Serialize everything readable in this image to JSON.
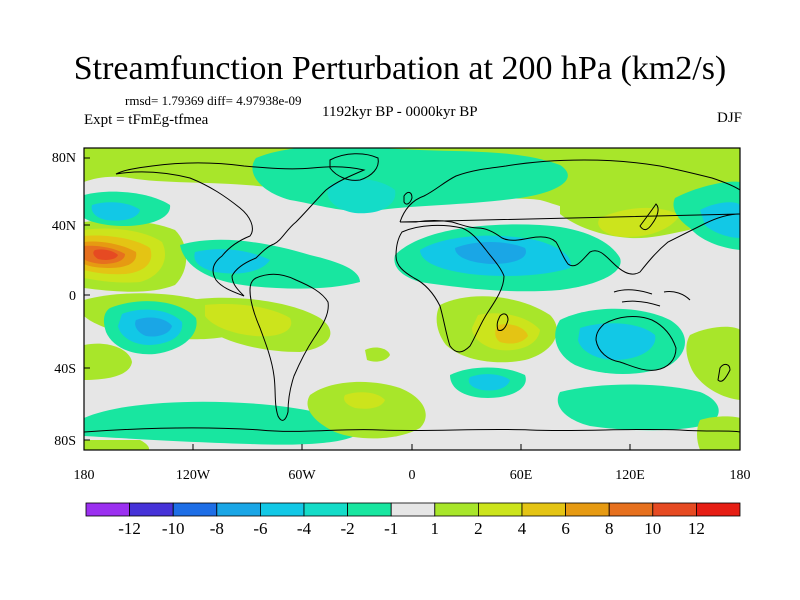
{
  "figure": {
    "title": "Streamfunction Perturbation at 200 hPa (km2/s)",
    "stats_line": "rmsd= 1.79369 diff= 4.97938e-09",
    "experiment": "Expt = tFmEg-tfmea",
    "period": "1192kyr BP - 0000kyr BP",
    "season": "DJF"
  },
  "axes": {
    "lat_ticks": [
      "80N",
      "40N",
      "0",
      "40S",
      "80S"
    ],
    "lon_ticks": [
      "180",
      "120W",
      "60W",
      "0",
      "60E",
      "120E",
      "180"
    ]
  },
  "colorbar": {
    "labels": [
      "-12",
      "-10",
      "-8",
      "-6",
      "-4",
      "-2",
      "-1",
      "1",
      "2",
      "4",
      "6",
      "8",
      "10",
      "12"
    ],
    "colors": [
      "#9b30f0",
      "#4632d8",
      "#1e6ee6",
      "#1aa6e6",
      "#12c8e6",
      "#14dcc8",
      "#18e6a0",
      "#e6e6e6",
      "#a8e62a",
      "#cce41c",
      "#e4c414",
      "#e69a12",
      "#e6701e",
      "#e64a22",
      "#e61e14"
    ]
  },
  "chart_data": {
    "type": "heatmap",
    "title": "Streamfunction Perturbation at 200 hPa (km2/s)",
    "x_axis": {
      "label": "longitude",
      "range": [
        -180,
        180
      ],
      "ticks": [
        -180,
        -120,
        -60,
        0,
        60,
        120,
        180
      ]
    },
    "y_axis": {
      "label": "latitude",
      "range": [
        -90,
        90
      ],
      "ticks": [
        80,
        40,
        0,
        -40,
        -80
      ]
    },
    "contour_levels": [
      -12,
      -10,
      -8,
      -6,
      -4,
      -2,
      -1,
      1,
      2,
      4,
      6,
      8,
      10,
      12
    ],
    "features": [
      {
        "lon": -170,
        "lat": 19,
        "value": 9,
        "kind": "max"
      },
      {
        "lon": 168,
        "lat": 18,
        "value": 7,
        "kind": "max"
      },
      {
        "lon": -148,
        "lat": -16,
        "value": -5,
        "kind": "min"
      },
      {
        "lon": 30,
        "lat": 22,
        "value": -5,
        "kind": "min"
      },
      {
        "lon": -28,
        "lat": 48,
        "value": -4,
        "kind": "min"
      },
      {
        "lon": 135,
        "lat": 25,
        "value": 3,
        "kind": "max"
      },
      {
        "lon": 158,
        "lat": 42,
        "value": -3,
        "kind": "min"
      },
      {
        "lon": 40,
        "lat": -22,
        "value": 4,
        "kind": "max"
      },
      {
        "lon": 108,
        "lat": -28,
        "value": -3,
        "kind": "min"
      },
      {
        "lon": -45,
        "lat": -48,
        "value": 2,
        "kind": "max"
      },
      {
        "lon": -100,
        "lat": 10,
        "value": -2,
        "kind": "min"
      },
      {
        "lon": -60,
        "lat": -18,
        "value": 1,
        "kind": "max"
      }
    ]
  }
}
